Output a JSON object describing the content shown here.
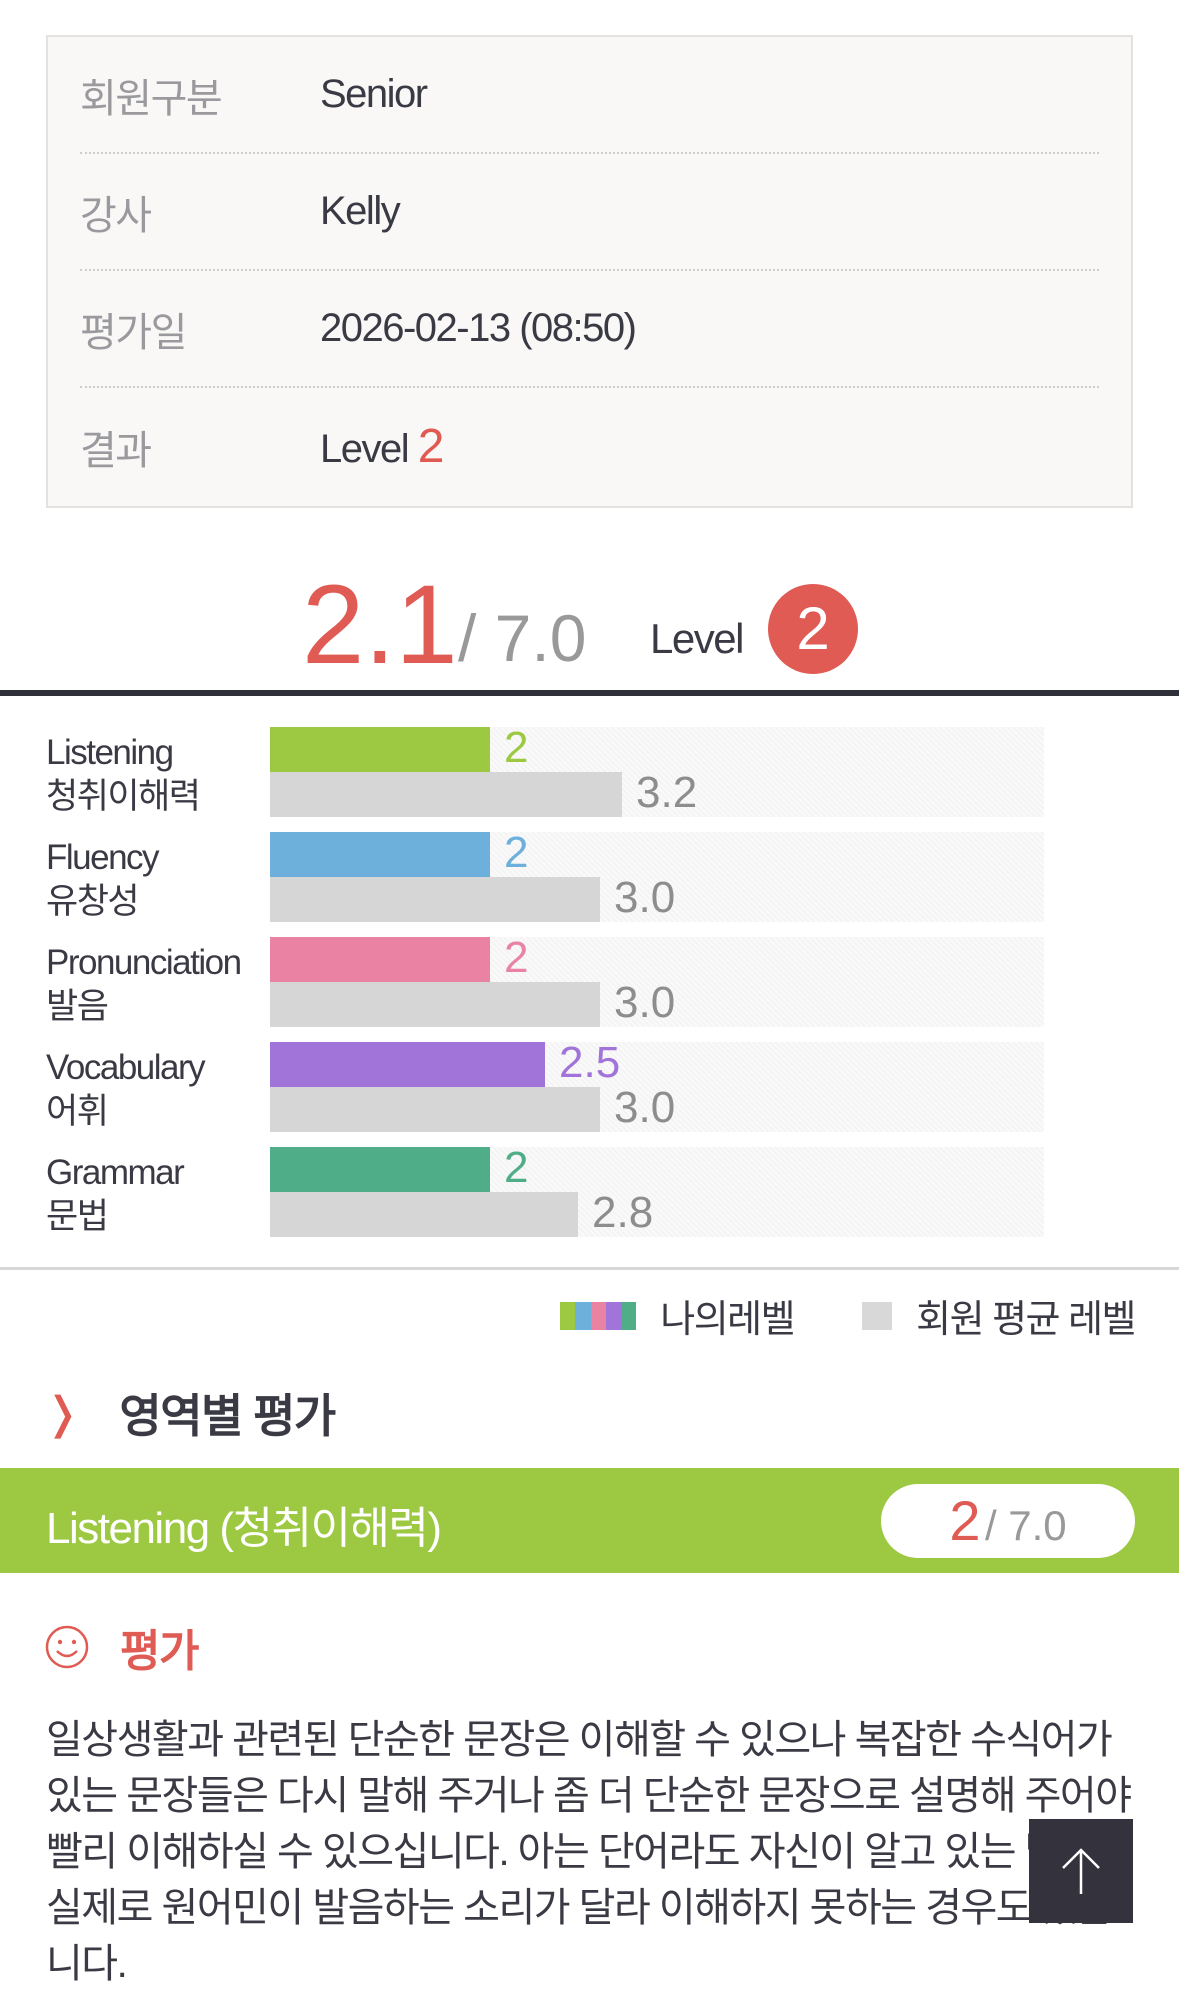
{
  "info": [
    {
      "label": "회원구분",
      "value": "Senior"
    },
    {
      "label": "강사",
      "value": "Kelly"
    },
    {
      "label": "평가일",
      "value": "2026-02-13 (08:50)"
    },
    {
      "label": "결과",
      "value_prefix": "Level ",
      "value_level": "2"
    }
  ],
  "score": {
    "value": "2.1",
    "max": "/ 7.0",
    "level_label": "Level",
    "level": "2"
  },
  "chart_data": {
    "type": "bar",
    "orientation": "horizontal",
    "xlim": [
      0,
      7
    ],
    "categories": [
      {
        "en": "Listening",
        "ko": "청취이해력"
      },
      {
        "en": "Fluency",
        "ko": "유창성"
      },
      {
        "en": "Pronunciation",
        "ko": "발음"
      },
      {
        "en": "Vocabulary",
        "ko": "어휘"
      },
      {
        "en": "Grammar",
        "ko": "문법"
      }
    ],
    "series": [
      {
        "name": "나의레벨",
        "values": [
          2,
          2,
          2,
          2.5,
          2
        ],
        "labels": [
          "2",
          "2",
          "2",
          "2.5",
          "2"
        ],
        "colors": [
          "#9cc941",
          "#6db0dc",
          "#ea82a4",
          "#a074d8",
          "#4fad88"
        ]
      },
      {
        "name": "회원 평균 레벨",
        "values": [
          3.2,
          3.0,
          3.0,
          3.0,
          2.8
        ],
        "labels": [
          "3.2",
          "3.0",
          "3.0",
          "3.0",
          "2.8"
        ],
        "color": "#d6d6d6"
      }
    ],
    "legend_position": "bottom-right"
  },
  "section_title": "영역별 평가",
  "banner": {
    "title": "Listening (청취이해력)",
    "score": "2",
    "max": "/ 7.0",
    "color": "#9cc941"
  },
  "evaluation": {
    "heading": "평가",
    "text": "일상생활과 관련된 단순한 문장은 이해할 수 있으나 복잡한 수식어가 있는 문장들은 다시 말해 주거나 좀 더 단순한 문장으로 설명해 주어야 빨리 이해하실 수 있으십니다. 아는 단어라도 자신이 알고 있는 발음과 실제로 원어민이 발음하는 소리가 달라 이해하지 못하는 경우도 있습니다."
  },
  "accent": "#df5b53"
}
